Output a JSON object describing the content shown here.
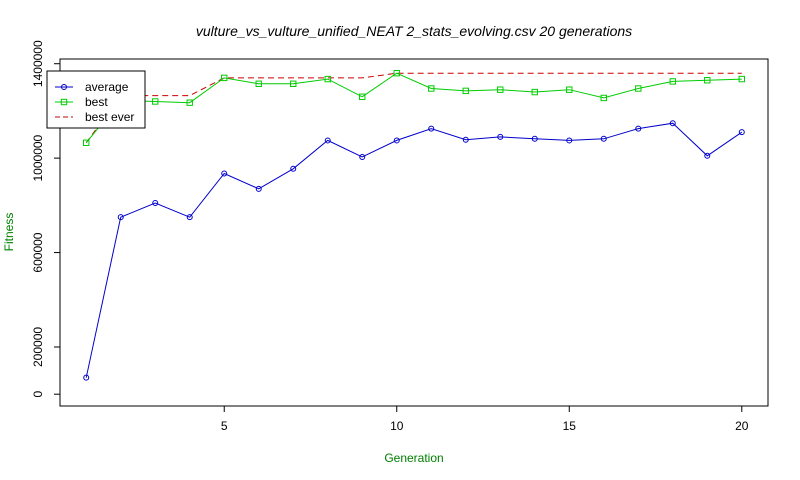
{
  "chart_data": {
    "type": "line",
    "title": "vulture_vs_vulture_unified_NEAT 2_stats_evolving.csv 20 generations",
    "xlabel": "Generation",
    "ylabel": "Fitness",
    "label_color": "#008000",
    "xlim": [
      0.24,
      20.76
    ],
    "ylim": [
      -50000,
      1420000
    ],
    "xticks": [
      5,
      10,
      15,
      20
    ],
    "yticks": [
      0,
      200000,
      600000,
      1000000,
      1400000
    ],
    "ytick_labels": [
      "0",
      "200000",
      "600000",
      "1000000",
      "1400000"
    ],
    "grid": false,
    "legend_position": "top-left",
    "x": [
      1,
      2,
      3,
      4,
      5,
      6,
      7,
      8,
      9,
      10,
      11,
      12,
      13,
      14,
      15,
      16,
      17,
      18,
      19,
      20
    ],
    "series": [
      {
        "name": "average",
        "color": "#0000cc",
        "line": "solid",
        "marker": "circle",
        "values": [
          70000,
          750000,
          810000,
          750000,
          935000,
          870000,
          955000,
          1075000,
          1005000,
          1075000,
          1125000,
          1078000,
          1090000,
          1082000,
          1075000,
          1082000,
          1125000,
          1148000,
          1010000,
          1110000
        ]
      },
      {
        "name": "best",
        "color": "#00cc00",
        "line": "solid",
        "marker": "square",
        "values": [
          1065000,
          1245000,
          1240000,
          1235000,
          1340000,
          1315000,
          1315000,
          1335000,
          1260000,
          1360000,
          1295000,
          1285000,
          1290000,
          1280000,
          1290000,
          1255000,
          1295000,
          1325000,
          1330000,
          1335000
        ]
      },
      {
        "name": "best ever",
        "color": "#cc0000",
        "line": "dashed",
        "marker": "none",
        "values": [
          1065000,
          1265000,
          1265000,
          1265000,
          1340000,
          1340000,
          1340000,
          1340000,
          1340000,
          1360000,
          1360000,
          1360000,
          1360000,
          1360000,
          1360000,
          1360000,
          1360000,
          1360000,
          1360000,
          1360000
        ]
      }
    ]
  }
}
